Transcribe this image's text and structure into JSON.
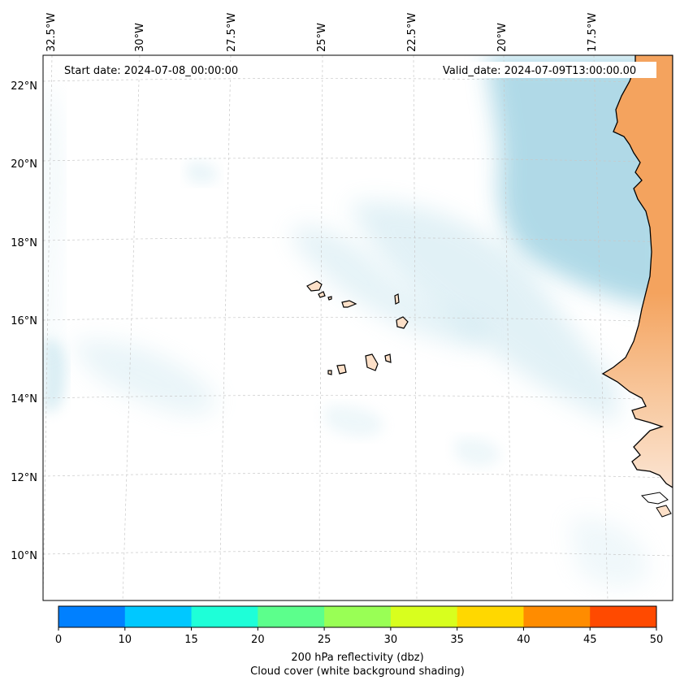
{
  "map": {
    "start_date": "Start date: 2024-07-08_00:00:00",
    "valid_date": "Valid_date: 2024-07-09T13:00:00.00",
    "lon_labels": [
      "32.5°W",
      "30°W",
      "27.5°W",
      "25°W",
      "22.5°W",
      "20°W",
      "17.5°W"
    ],
    "lat_labels": [
      "22°N",
      "20°N",
      "18°N",
      "16°N",
      "14°N",
      "12°N",
      "10°N"
    ],
    "colors": {
      "land": "#f4a35e",
      "cloud_shading": "#acd8e6",
      "island_fill": "#fde0c8",
      "coastline": "#000000",
      "gridline": "#b0b0b0"
    }
  },
  "colorbar": {
    "ticks": [
      "0",
      "10",
      "15",
      "20",
      "25",
      "30",
      "35",
      "40",
      "45",
      "50"
    ],
    "colors": [
      "#0080ff",
      "#00c8ff",
      "#1effd8",
      "#5cff8c",
      "#99ff55",
      "#d8ff1e",
      "#ffd800",
      "#ff8c00",
      "#ff4a00"
    ],
    "label_line1": "200 hPa reflectivity (dbz)",
    "label_line2": "Cloud cover (white background shading)"
  }
}
